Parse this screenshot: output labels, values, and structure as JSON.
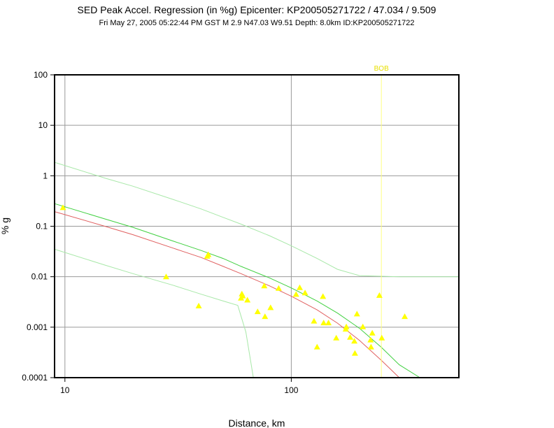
{
  "chart_data": {
    "type": "scatter",
    "title": "SED Peak Accel. Regression (in %g) Epicenter: KP200505271722 / 47.034 / 9.509",
    "subtitle": "Fri May 27, 2005 05:22:44 PM GST   M 2.9   N47.03 W9.51   Depth: 8.0km   ID:KP200505271722",
    "xlabel": "Distance, km",
    "ylabel": "% g",
    "xscale": "log",
    "yscale": "log",
    "xlim": [
      9,
      550
    ],
    "ylim": [
      0.0001,
      100
    ],
    "grid": true,
    "x_ticks": [
      {
        "value": 10,
        "label": "10"
      },
      {
        "value": 100,
        "label": "100"
      }
    ],
    "y_ticks": [
      {
        "value": 100,
        "label": "100"
      },
      {
        "value": 10,
        "label": "10"
      },
      {
        "value": 1,
        "label": "1"
      },
      {
        "value": 0.1,
        "label": "0.1"
      },
      {
        "value": 0.01,
        "label": "0.01"
      },
      {
        "value": 0.001,
        "label": "0.001"
      },
      {
        "value": 0.0001,
        "label": "0.0001"
      }
    ],
    "marker": {
      "label": "BOB",
      "x": 250,
      "color": "#ffff80"
    },
    "colors": {
      "points": "#ffff00",
      "regression": "#e06060",
      "fit": "#40d040",
      "fit_bound": "#a8e8a8",
      "marker": "#ffff80"
    },
    "series": [
      {
        "role": "stations",
        "points": [
          [
            9.8,
            0.23
          ],
          [
            28,
            0.0098
          ],
          [
            39,
            0.0026
          ],
          [
            42.5,
            0.025
          ],
          [
            43,
            0.027
          ],
          [
            60,
            0.0037
          ],
          [
            60.5,
            0.0045
          ],
          [
            61,
            0.0041
          ],
          [
            64,
            0.0034
          ],
          [
            71,
            0.002
          ],
          [
            76,
            0.0065
          ],
          [
            76.5,
            0.0016
          ],
          [
            81,
            0.0024
          ],
          [
            88,
            0.0058
          ],
          [
            105,
            0.0044
          ],
          [
            109,
            0.006
          ],
          [
            115,
            0.0047
          ],
          [
            126,
            0.0013
          ],
          [
            130,
            0.0004
          ],
          [
            138,
            0.004
          ],
          [
            139,
            0.0012
          ],
          [
            146,
            0.0012
          ],
          [
            158,
            0.0006
          ],
          [
            174,
            0.0009
          ],
          [
            175,
            0.001
          ],
          [
            182,
            0.00062
          ],
          [
            190,
            0.00052
          ],
          [
            191,
            0.0003
          ],
          [
            195,
            0.0018
          ],
          [
            207,
            0.001
          ],
          [
            224,
            0.00055
          ],
          [
            225,
            0.0004
          ],
          [
            228,
            0.00075
          ],
          [
            245,
            0.0042
          ],
          [
            251,
            0.0006
          ],
          [
            317,
            0.0016
          ]
        ]
      },
      {
        "role": "regression",
        "points": [
          [
            9,
            0.195
          ],
          [
            15,
            0.1
          ],
          [
            20,
            0.068
          ],
          [
            30,
            0.037
          ],
          [
            40,
            0.024
          ],
          [
            50,
            0.016
          ],
          [
            60,
            0.0115
          ],
          [
            80,
            0.0066
          ],
          [
            100,
            0.0041
          ],
          [
            130,
            0.0022
          ],
          [
            160,
            0.0012
          ],
          [
            200,
            0.00055
          ],
          [
            250,
            0.00022
          ],
          [
            300,
            0.0001
          ]
        ]
      },
      {
        "role": "fit",
        "points": [
          [
            9,
            0.28
          ],
          [
            15,
            0.14
          ],
          [
            20,
            0.095
          ],
          [
            30,
            0.051
          ],
          [
            40,
            0.033
          ],
          [
            50,
            0.023
          ],
          [
            60,
            0.016
          ],
          [
            80,
            0.0095
          ],
          [
            100,
            0.006
          ],
          [
            130,
            0.0033
          ],
          [
            160,
            0.0019
          ],
          [
            200,
            0.00095
          ],
          [
            250,
            0.0004
          ],
          [
            300,
            0.00018
          ],
          [
            370,
            0.0001
          ]
        ]
      },
      {
        "role": "upper_bound",
        "points": [
          [
            9,
            1.85
          ],
          [
            15,
            0.9
          ],
          [
            20,
            0.62
          ],
          [
            30,
            0.34
          ],
          [
            40,
            0.22
          ],
          [
            50,
            0.15
          ],
          [
            60,
            0.11
          ],
          [
            80,
            0.065
          ],
          [
            100,
            0.041
          ],
          [
            130,
            0.023
          ],
          [
            160,
            0.014
          ],
          [
            200,
            0.0105
          ],
          [
            300,
            0.01
          ],
          [
            550,
            0.01
          ]
        ]
      },
      {
        "role": "lower_bound",
        "points": [
          [
            9,
            0.035
          ],
          [
            15,
            0.017
          ],
          [
            20,
            0.0115
          ],
          [
            30,
            0.0068
          ],
          [
            40,
            0.0045
          ],
          [
            50,
            0.0033
          ],
          [
            58,
            0.0027
          ],
          [
            63,
            0.0008
          ],
          [
            68,
            0.0001
          ]
        ]
      }
    ]
  }
}
